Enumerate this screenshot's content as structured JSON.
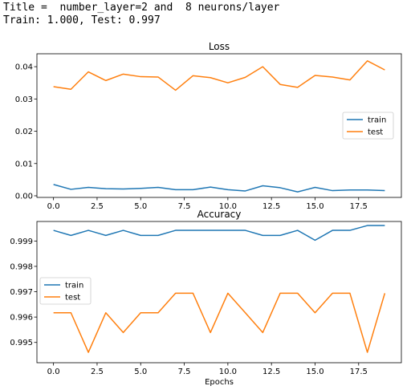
{
  "header": {
    "title_line": "Title =  number_layer=2 and  8 neurons/layer",
    "score_line": "Train: 1.000, Test: 0.997"
  },
  "colors": {
    "train": "#1f77b4",
    "test": "#ff7f0e"
  },
  "chart_data": [
    {
      "type": "line",
      "title": "Loss",
      "xlabel": "",
      "ylabel": "",
      "x": [
        0,
        1,
        2,
        3,
        4,
        5,
        6,
        7,
        8,
        9,
        10,
        11,
        12,
        13,
        14,
        15,
        16,
        17,
        18,
        19
      ],
      "xlim": [
        -0.95,
        19.95
      ],
      "ylim": [
        -0.0005,
        0.044
      ],
      "xticks": [
        0.0,
        2.5,
        5.0,
        7.5,
        10.0,
        12.5,
        15.0,
        17.5
      ],
      "xtick_labels": [
        "0.0",
        "2.5",
        "5.0",
        "7.5",
        "10.0",
        "12.5",
        "15.0",
        "17.5"
      ],
      "yticks": [
        0.0,
        0.01,
        0.02,
        0.03,
        0.04
      ],
      "ytick_labels": [
        "0.00",
        "0.01",
        "0.02",
        "0.03",
        "0.04"
      ],
      "legend_position": "center-right",
      "grid": false,
      "series": [
        {
          "name": "train",
          "values": [
            0.0035,
            0.002,
            0.0026,
            0.0022,
            0.0021,
            0.0023,
            0.0026,
            0.0019,
            0.0019,
            0.0027,
            0.0019,
            0.0015,
            0.0031,
            0.0025,
            0.0012,
            0.0026,
            0.0016,
            0.0018,
            0.0018,
            0.0016
          ]
        },
        {
          "name": "test",
          "values": [
            0.0338,
            0.033,
            0.0384,
            0.0357,
            0.0377,
            0.0369,
            0.0368,
            0.0327,
            0.0372,
            0.0366,
            0.035,
            0.0367,
            0.04,
            0.0345,
            0.0336,
            0.0373,
            0.0368,
            0.0359,
            0.0418,
            0.039
          ]
        }
      ]
    },
    {
      "type": "line",
      "title": "Accuracy",
      "xlabel": "Epochs",
      "ylabel": "",
      "x": [
        0,
        1,
        2,
        3,
        4,
        5,
        6,
        7,
        8,
        9,
        10,
        11,
        12,
        13,
        14,
        15,
        16,
        17,
        18,
        19
      ],
      "xlim": [
        -0.95,
        19.95
      ],
      "ylim": [
        0.9942,
        0.99977
      ],
      "xticks": [
        0.0,
        2.5,
        5.0,
        7.5,
        10.0,
        12.5,
        15.0,
        17.5
      ],
      "xtick_labels": [
        "0.0",
        "2.5",
        "5.0",
        "7.5",
        "10.0",
        "12.5",
        "15.0",
        "17.5"
      ],
      "yticks": [
        0.995,
        0.996,
        0.997,
        0.998,
        0.999
      ],
      "ytick_labels": [
        "0.995",
        "0.996",
        "0.997",
        "0.998",
        "0.999"
      ],
      "legend_position": "center-left",
      "grid": false,
      "series": [
        {
          "name": "train",
          "values": [
            0.99942,
            0.99922,
            0.99942,
            0.99922,
            0.99942,
            0.99922,
            0.99922,
            0.99942,
            0.99942,
            0.99942,
            0.99942,
            0.99942,
            0.99922,
            0.99922,
            0.99942,
            0.99903,
            0.99942,
            0.99942,
            0.99961,
            0.99961
          ]
        },
        {
          "name": "test",
          "values": [
            0.99617,
            0.99617,
            0.99461,
            0.99617,
            0.99539,
            0.99617,
            0.99617,
            0.99694,
            0.99694,
            0.99539,
            0.99694,
            0.99617,
            0.99539,
            0.99694,
            0.99694,
            0.99617,
            0.99694,
            0.99694,
            0.99461,
            0.99694
          ]
        }
      ]
    }
  ]
}
